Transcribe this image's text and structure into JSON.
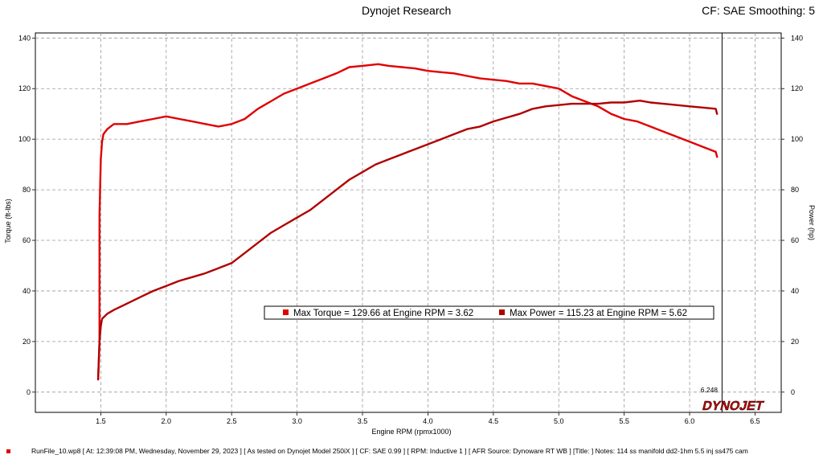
{
  "header": {
    "title": "Dynojet Research",
    "info": "CF: SAE Smoothing: 5"
  },
  "footer": {
    "run_info": "RunFile_10.wp8 [ At: 12:39:08 PM, Wednesday, November 29, 2023 ] [ As tested on Dynojet Model 250iX ] [ CF: SAE 0.99 ] [ RPM: Inductive 1 ] [ AFR Source: Dynoware RT WB ] [Title: ]  Notes: 114 ss manifold dd2-1hm 5.5 inj ss475 cam"
  },
  "logo": {
    "text": "DYNOJET"
  },
  "colors": {
    "torque": "#e00000",
    "power": "#b00000",
    "grid": "#999999",
    "cursor": "#000000"
  },
  "chart_data": {
    "type": "line",
    "title": "Dynojet Research",
    "xlabel": "Engine RPM (rpmx1000)",
    "ylabel": "Torque (ft-lbs)",
    "y2label": "Power (hp)",
    "xlim": [
      1.0,
      6.7
    ],
    "ylim": [
      -8,
      142
    ],
    "y2lim": [
      -8,
      142
    ],
    "x_ticks": [
      1.5,
      2.0,
      2.5,
      3.0,
      3.5,
      4.0,
      4.5,
      5.0,
      5.5,
      6.0,
      6.5
    ],
    "x_tick_labels": [
      "1.5",
      "2.0",
      "2.5",
      "3.0",
      "3.5",
      "4.0",
      "4.5",
      "5.0",
      "5.5",
      "6.0",
      "6.5"
    ],
    "y_ticks": [
      0,
      20,
      40,
      60,
      80,
      100,
      120,
      140
    ],
    "y_tick_labels": [
      "0",
      "20",
      "40",
      "60",
      "80",
      "100",
      "120",
      "140"
    ],
    "grid": true,
    "legend_position": "bottom-right",
    "legend": {
      "torque": "Max Torque = 129.66 at Engine RPM = 3.62",
      "power": "Max Power = 115.23 at Engine RPM = 5.62"
    },
    "cursor": {
      "x": 6.248,
      "label": "6.248"
    },
    "series": [
      {
        "name": "Torque (ft-lbs)",
        "axis": "left",
        "x": [
          1.48,
          1.49,
          1.49,
          1.5,
          1.51,
          1.52,
          1.55,
          1.6,
          1.7,
          1.8,
          1.9,
          2.0,
          2.1,
          2.2,
          2.3,
          2.4,
          2.5,
          2.6,
          2.7,
          2.8,
          2.9,
          3.0,
          3.1,
          3.2,
          3.3,
          3.4,
          3.5,
          3.62,
          3.7,
          3.8,
          3.9,
          4.0,
          4.1,
          4.2,
          4.3,
          4.4,
          4.5,
          4.6,
          4.7,
          4.8,
          4.9,
          5.0,
          5.1,
          5.2,
          5.3,
          5.4,
          5.5,
          5.6,
          5.7,
          5.8,
          5.9,
          6.0,
          6.1,
          6.15,
          6.2,
          6.21
        ],
        "y": [
          5,
          20,
          70,
          92,
          99,
          102,
          104,
          106,
          106,
          107,
          108,
          109,
          108,
          107,
          106,
          105,
          106,
          108,
          112,
          115,
          118,
          120,
          122,
          124,
          126,
          128.5,
          129,
          129.66,
          129,
          128.5,
          128,
          127,
          126.5,
          126,
          125,
          124,
          123.5,
          123,
          122,
          122,
          121,
          120,
          117,
          115,
          113,
          110,
          108,
          107,
          105,
          103,
          101,
          99,
          97,
          96,
          95,
          93
        ]
      },
      {
        "name": "Power (hp)",
        "axis": "right",
        "x": [
          1.48,
          1.49,
          1.5,
          1.51,
          1.55,
          1.6,
          1.7,
          1.8,
          1.9,
          2.0,
          2.1,
          2.2,
          2.3,
          2.4,
          2.5,
          2.6,
          2.7,
          2.8,
          2.9,
          3.0,
          3.1,
          3.2,
          3.3,
          3.4,
          3.5,
          3.6,
          3.7,
          3.8,
          3.9,
          4.0,
          4.1,
          4.2,
          4.3,
          4.4,
          4.5,
          4.6,
          4.7,
          4.8,
          4.9,
          5.0,
          5.1,
          5.2,
          5.3,
          5.4,
          5.5,
          5.62,
          5.7,
          5.8,
          5.9,
          6.0,
          6.1,
          6.2,
          6.21
        ],
        "y": [
          5,
          20,
          26,
          29,
          31,
          32.5,
          35,
          37.5,
          40,
          42,
          44,
          45.5,
          47,
          49,
          51,
          55,
          59,
          63,
          66,
          69,
          72,
          76,
          80,
          84,
          87,
          90,
          92,
          94,
          96,
          98,
          100,
          102,
          104,
          105,
          107,
          108.5,
          110,
          112,
          113,
          113.5,
          114,
          114,
          114,
          114.5,
          114.5,
          115.23,
          114.5,
          114,
          113.5,
          113,
          112.5,
          112,
          110
        ]
      }
    ]
  }
}
